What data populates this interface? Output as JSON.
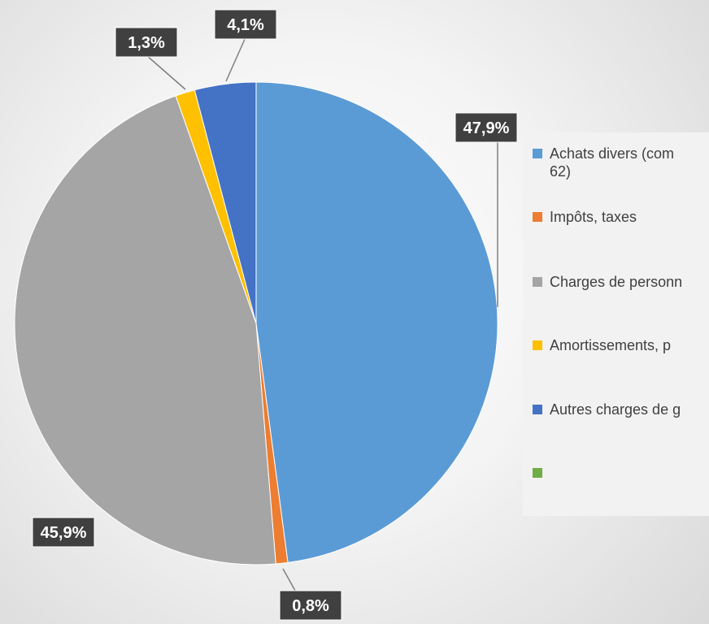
{
  "chart_data": {
    "type": "pie",
    "categories": [
      "Achats divers (com\n62)",
      "Impôts, taxes",
      "Charges de personn",
      "Amortissements, p",
      "Autres charges de g",
      null
    ],
    "values": [
      47.9,
      0.8,
      45.9,
      1.3,
      4.1,
      null
    ],
    "value_labels": [
      "47,9%",
      "0,8%",
      "45,9%",
      "1,3%",
      "4,1%",
      null
    ],
    "colors": [
      "#5b9bd5",
      "#ed7d31",
      "#a5a5a5",
      "#ffc000",
      "#4472c4",
      "#70ad47"
    ],
    "legend": "right"
  }
}
